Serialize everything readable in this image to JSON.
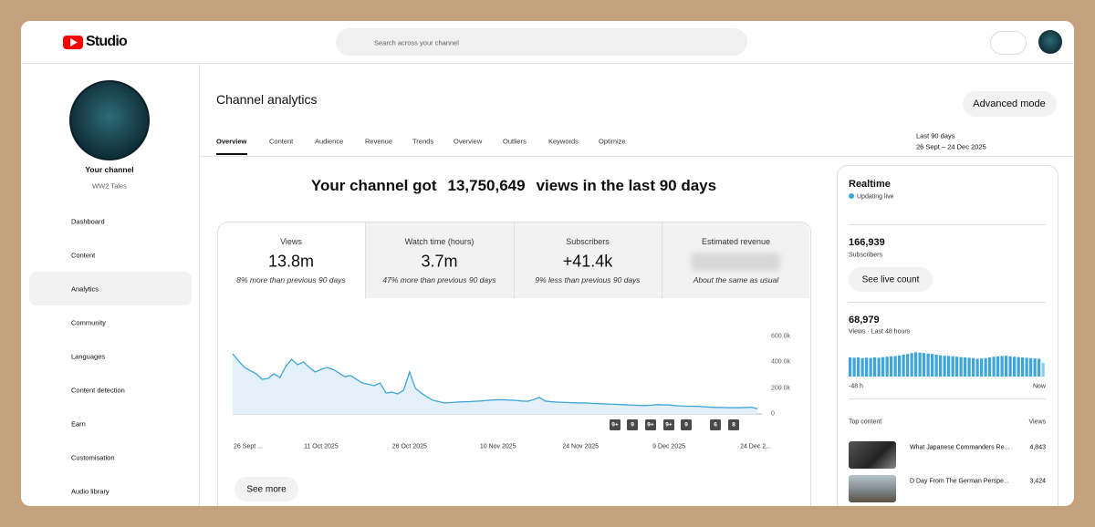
{
  "header": {
    "logo": "Studio",
    "search_placeholder": "Search across your channel"
  },
  "sidebar": {
    "channel_label": "Your channel",
    "channel_name": "WW2 Tales",
    "nav": [
      "Dashboard",
      "Content",
      "Analytics",
      "Community",
      "Languages",
      "Content detection",
      "Earn",
      "Customisation",
      "Audio library"
    ]
  },
  "page": {
    "title": "Channel analytics",
    "advanced_button": "Advanced mode",
    "tabs": [
      "Overview",
      "Content",
      "Audience",
      "Revenue",
      "Trends",
      "Overview",
      "Outliers",
      "Keywords",
      "Optimize"
    ],
    "date_range": {
      "label": "Last 90 days",
      "dates": "26 Sept – 24 Dec 2025"
    },
    "headline": {
      "prefix": "Your channel got",
      "views": "13,750,649",
      "suffix": "views in the last 90 days"
    },
    "metrics": [
      {
        "label": "Views",
        "value": "13.8m",
        "comparison": "8% more than previous 90 days"
      },
      {
        "label": "Watch time (hours)",
        "value": "3.7m",
        "comparison": "47% more than previous 90 days"
      },
      {
        "label": "Subscribers",
        "value": "+41.4k",
        "comparison": "9% less than previous 90 days"
      },
      {
        "label": "Estimated revenue",
        "comparison": "About the same as usual"
      }
    ],
    "see_more": "See more"
  },
  "chart_data": {
    "type": "line",
    "color": "#3ea6d8",
    "area_color": "#e3f0f9",
    "categories": [
      "26 Sept ...",
      null,
      null,
      null,
      null,
      null,
      null,
      null,
      null,
      null,
      null,
      null,
      null,
      null,
      null,
      "11 Oct 2025",
      null,
      null,
      null,
      null,
      null,
      null,
      null,
      null,
      null,
      null,
      null,
      null,
      null,
      null,
      "26 Oct 2025",
      null,
      null,
      null,
      null,
      null,
      null,
      null,
      null,
      null,
      null,
      null,
      null,
      null,
      null,
      "10 Nov 2025",
      null,
      null,
      null,
      null,
      null,
      null,
      null,
      null,
      null,
      null,
      null,
      null,
      null,
      "24 Nov 2025",
      null,
      null,
      null,
      null,
      null,
      null,
      null,
      null,
      null,
      null,
      null,
      null,
      null,
      null,
      "9 Dec 2025",
      null,
      null,
      null,
      null,
      null,
      null,
      null,
      null,
      null,
      null,
      null,
      null,
      null,
      null,
      "24 Dec 2..."
    ],
    "values": [
      466000,
      410000,
      360000,
      335000,
      311000,
      268000,
      275000,
      311000,
      282000,
      367000,
      424000,
      381000,
      402000,
      360000,
      325000,
      345000,
      360000,
      346000,
      318000,
      289000,
      297000,
      268000,
      240000,
      230000,
      219000,
      240000,
      162000,
      169000,
      155000,
      184000,
      325000,
      198000,
      162000,
      130000,
      106000,
      95000,
      85000,
      88000,
      92000,
      94000,
      95000,
      98000,
      100000,
      104000,
      108000,
      110000,
      110000,
      107000,
      105000,
      100000,
      98000,
      110000,
      128000,
      100000,
      95000,
      92000,
      90000,
      88000,
      86000,
      85000,
      85000,
      82000,
      80000,
      78000,
      76000,
      75000,
      72000,
      70000,
      68000,
      66000,
      65000,
      68000,
      72000,
      70000,
      70000,
      65000,
      62000,
      60000,
      60000,
      58000,
      55000,
      52000,
      50000,
      50000,
      48000,
      48000,
      48000,
      50000,
      52000,
      40000
    ],
    "ylim": [
      0,
      600000
    ],
    "yticks": [
      0,
      {
        "value": 200000,
        "label": "200.0k"
      },
      {
        "value": 400000,
        "label": "400.0k"
      },
      {
        "value": 600000,
        "label": "600.0k"
      }
    ],
    "grid": false,
    "markers": [
      "9+",
      "9",
      "9+",
      "9+",
      "9",
      "6",
      "8"
    ]
  },
  "realtime": {
    "title": "Realtime",
    "status": "Updating live",
    "subscribers": "166,939",
    "subscribers_label": "Subscribers",
    "live_button": "See live count",
    "views": "68,979",
    "views_label": "Views · Last 48 hours",
    "bars": {
      "type": "bar",
      "color": "#3ea6d8",
      "ylim": [
        0,
        2000
      ],
      "values": [
        1400,
        1380,
        1400,
        1350,
        1380,
        1360,
        1400,
        1380,
        1420,
        1450,
        1480,
        1500,
        1550,
        1600,
        1650,
        1720,
        1780,
        1750,
        1720,
        1680,
        1650,
        1600,
        1560,
        1520,
        1500,
        1480,
        1450,
        1420,
        1400,
        1380,
        1350,
        1300,
        1320,
        1350,
        1400,
        1450,
        1480,
        1500,
        1520,
        1480,
        1450,
        1420,
        1400,
        1380,
        1350,
        1320,
        1300,
        1000
      ],
      "x_start": "-48 h",
      "x_end": "Now"
    },
    "top_content": {
      "title": "Top content",
      "views_label": "Views",
      "items": [
        {
          "title": "What Japanese Commanders Re...",
          "views": "4,843"
        },
        {
          "title": "D Day From The German Perspe...",
          "views": "3,424"
        }
      ]
    }
  }
}
